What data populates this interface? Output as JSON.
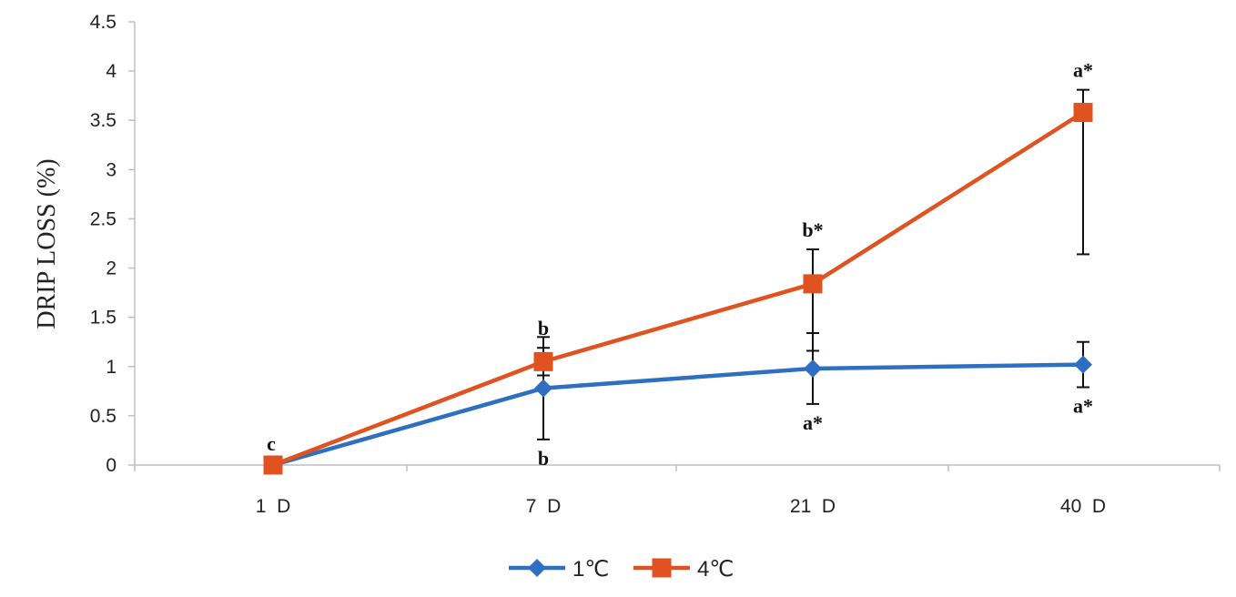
{
  "chart_data": {
    "type": "line",
    "title": "",
    "xlabel": "",
    "ylabel": "DRIP LOSS (%)",
    "categories": [
      "1 D",
      "7 D",
      "21 D",
      "40 D"
    ],
    "yticks": [
      "0",
      "0.5",
      "1",
      "1.5",
      "2",
      "2.5",
      "3",
      "3.5",
      "4",
      "4.5"
    ],
    "ylim": [
      0,
      4.5
    ],
    "grid": false,
    "legend_position": "bottom",
    "series": [
      {
        "name": "1℃",
        "color": "#2E6FC2",
        "marker": "diamond",
        "values": [
          0,
          0.78,
          0.98,
          1.02
        ],
        "error": [
          0,
          0.52,
          0.36,
          0.23
        ],
        "labels": [
          "",
          "b",
          "a*",
          "a*"
        ]
      },
      {
        "name": "4℃",
        "color": "#E0521F",
        "marker": "square",
        "values": [
          0,
          1.05,
          1.84,
          3.58
        ],
        "error": [
          0,
          0.14,
          0.35,
          0.23
        ],
        "error_low": [
          0,
          0.14,
          0.68,
          1.44
        ],
        "labels": [
          "c",
          "b",
          "b*",
          "a*"
        ]
      }
    ]
  }
}
